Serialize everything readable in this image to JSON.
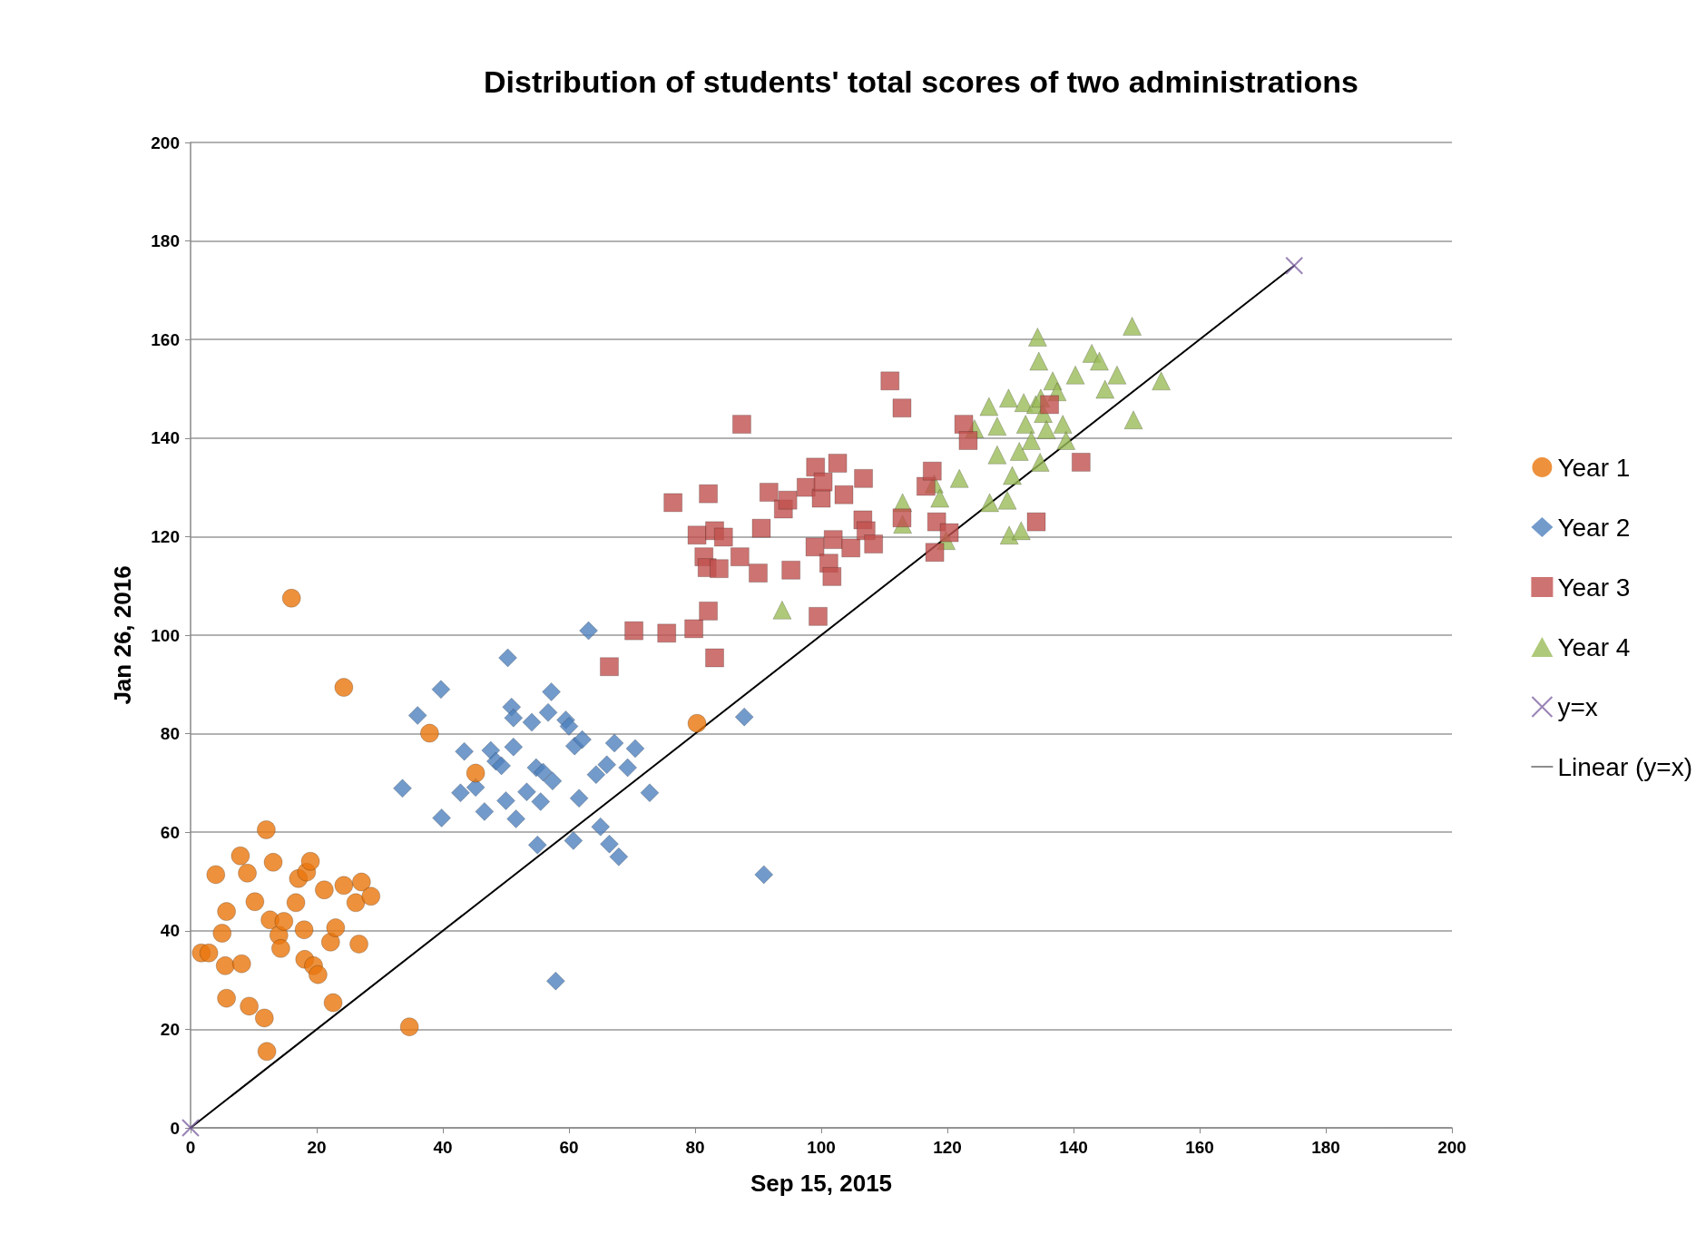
{
  "chart_data": {
    "type": "scatter",
    "title": "Distribution of students' total scores of two administrations",
    "xlabel": "Sep 15, 2015",
    "ylabel": "Jan 26, 2016",
    "xlim": [
      0,
      200
    ],
    "ylim": [
      0,
      200
    ],
    "xticks": [
      0,
      20,
      40,
      60,
      80,
      100,
      120,
      140,
      160,
      180,
      200
    ],
    "yticks": [
      0,
      20,
      40,
      60,
      80,
      100,
      120,
      140,
      160,
      180,
      200
    ],
    "grid": "y",
    "legend": "right",
    "series": [
      {
        "name": "Year 1",
        "color": "#e8760c",
        "marker": "circle",
        "x": [
          1.7,
          2.9,
          4,
          5,
          5.7,
          5.5,
          5.7,
          7.9,
          8.1,
          9,
          9.3,
          10.2,
          11.7,
          12,
          12.1,
          12.6,
          13.1,
          14,
          14.3,
          14.8,
          16,
          16.7,
          17.1,
          18,
          18.1,
          18.4,
          19,
          19.5,
          20.2,
          21.2,
          22.6,
          22.2,
          23,
          24.3,
          24.3,
          26.2,
          26.7,
          27.1,
          28.6,
          34.7,
          37.9,
          45.2,
          80.3
        ],
        "values": [
          35.5,
          35.5,
          51.4,
          39.5,
          43.9,
          32.9,
          26.3,
          55.2,
          33.3,
          51.7,
          24.7,
          45.9,
          22.3,
          60.5,
          15.5,
          42.2,
          53.9,
          39.1,
          36.4,
          41.9,
          107.5,
          45.7,
          50.6,
          40.2,
          34.2,
          51.9,
          54.1,
          32.9,
          31.1,
          48.3,
          25.4,
          37.7,
          40.6,
          89.4,
          49.2,
          45.7,
          37.3,
          49.9,
          47,
          20.5,
          80.1,
          72,
          82.1
        ]
      },
      {
        "name": "Year 2",
        "color": "#4f81bd",
        "marker": "diamond",
        "x": [
          33.6,
          36,
          39.7,
          39.8,
          42.8,
          43.4,
          45.2,
          46.6,
          47.6,
          48.4,
          49.3,
          50,
          50.3,
          50.9,
          51.2,
          51.2,
          51.6,
          53.3,
          54.1,
          54.8,
          55,
          55.5,
          55.9,
          56.7,
          57.2,
          57.4,
          57.9,
          59.5,
          60,
          60.7,
          60.9,
          61.6,
          62.1,
          63.1,
          64.3,
          65,
          66,
          66.4,
          67.2,
          67.9,
          69.3,
          70.5,
          72.8,
          87.8,
          90.9
        ],
        "values": [
          68.9,
          83.7,
          89,
          62.9,
          68,
          76.4,
          69.1,
          64.2,
          76.6,
          74.4,
          73.5,
          66.4,
          95.4,
          85.4,
          83.2,
          77.3,
          62.7,
          68.2,
          82.3,
          73.1,
          57.4,
          66.2,
          72.2,
          84.3,
          88.5,
          70.4,
          29.8,
          82.8,
          81.5,
          58.3,
          77.5,
          66.9,
          78.8,
          100.9,
          71.7,
          61.1,
          73.7,
          57.6,
          78.1,
          55,
          73.1,
          77,
          68,
          83.4,
          51.4
        ]
      },
      {
        "name": "Year 3",
        "color": "#c0504d",
        "marker": "square",
        "x": [
          66.4,
          70.3,
          75.5,
          76.5,
          79.8,
          80.3,
          81.4,
          81.9,
          82.1,
          82.1,
          83.1,
          83.1,
          83.8,
          84.5,
          87.1,
          87.4,
          90,
          90.5,
          91.7,
          94,
          94.7,
          95.2,
          97.6,
          99,
          99.1,
          99.5,
          100,
          100.3,
          101.2,
          101.7,
          101.9,
          102.6,
          103.6,
          104.7,
          106.6,
          106.7,
          107.1,
          108.3,
          110.9,
          112.8,
          112.8,
          116.6,
          117.6,
          118,
          118.3,
          120.3,
          122.6,
          123.3,
          134.1,
          136.2,
          141.2
        ],
        "values": [
          93.6,
          100.9,
          100.4,
          126.9,
          101.3,
          120.3,
          115.9,
          113.7,
          104.9,
          128.7,
          121.2,
          95.4,
          113.5,
          119.9,
          115.9,
          142.8,
          112.6,
          121.7,
          129,
          125.6,
          127.4,
          113.2,
          130,
          117.9,
          134.1,
          103.8,
          127.8,
          131.1,
          114.6,
          111.9,
          119.4,
          134.9,
          128.5,
          117.7,
          123.4,
          131.8,
          121.2,
          118.5,
          151.6,
          146.1,
          123.8,
          130.2,
          133.3,
          116.8,
          123,
          120.8,
          142.8,
          139.5,
          123,
          146.8,
          135.1
        ]
      },
      {
        "name": "Year 4",
        "color": "#9bbb59",
        "marker": "triangle",
        "x": [
          93.8,
          112.9,
          112.9,
          117.9,
          118.8,
          119.8,
          121.9,
          124.3,
          126.6,
          126.7,
          127.9,
          127.9,
          129.5,
          129.7,
          129.8,
          130.3,
          131.4,
          131.7,
          132.1,
          132.4,
          133.3,
          134,
          134.3,
          134.5,
          134.7,
          134.8,
          135.2,
          135.7,
          136.7,
          137.4,
          138.3,
          138.8,
          140.3,
          142.9,
          144.1,
          145,
          146.9,
          149.3,
          149.5,
          153.9
        ],
        "values": [
          105.1,
          126.9,
          122.5,
          130.7,
          127.8,
          119.2,
          131.8,
          141.9,
          146.4,
          126.9,
          136.6,
          142.4,
          127.4,
          148.1,
          120.3,
          132.4,
          137.3,
          121.2,
          147.2,
          142.8,
          139.5,
          146.8,
          160.5,
          155.6,
          135.1,
          148.1,
          145,
          141.7,
          151.6,
          149.4,
          142.8,
          139.5,
          152.8,
          157.2,
          155.6,
          149.9,
          152.8,
          162.7,
          143.7,
          151.6
        ]
      },
      {
        "name": "y=x",
        "color": "#8064a2",
        "marker": "cross",
        "x": [
          0,
          175
        ],
        "values": [
          0,
          175
        ]
      },
      {
        "name": "Linear (y=x)",
        "type": "line",
        "color": "#000000",
        "marker": "none",
        "line_style": "solid",
        "x": [
          0,
          175
        ],
        "values": [
          0,
          175
        ]
      }
    ]
  }
}
